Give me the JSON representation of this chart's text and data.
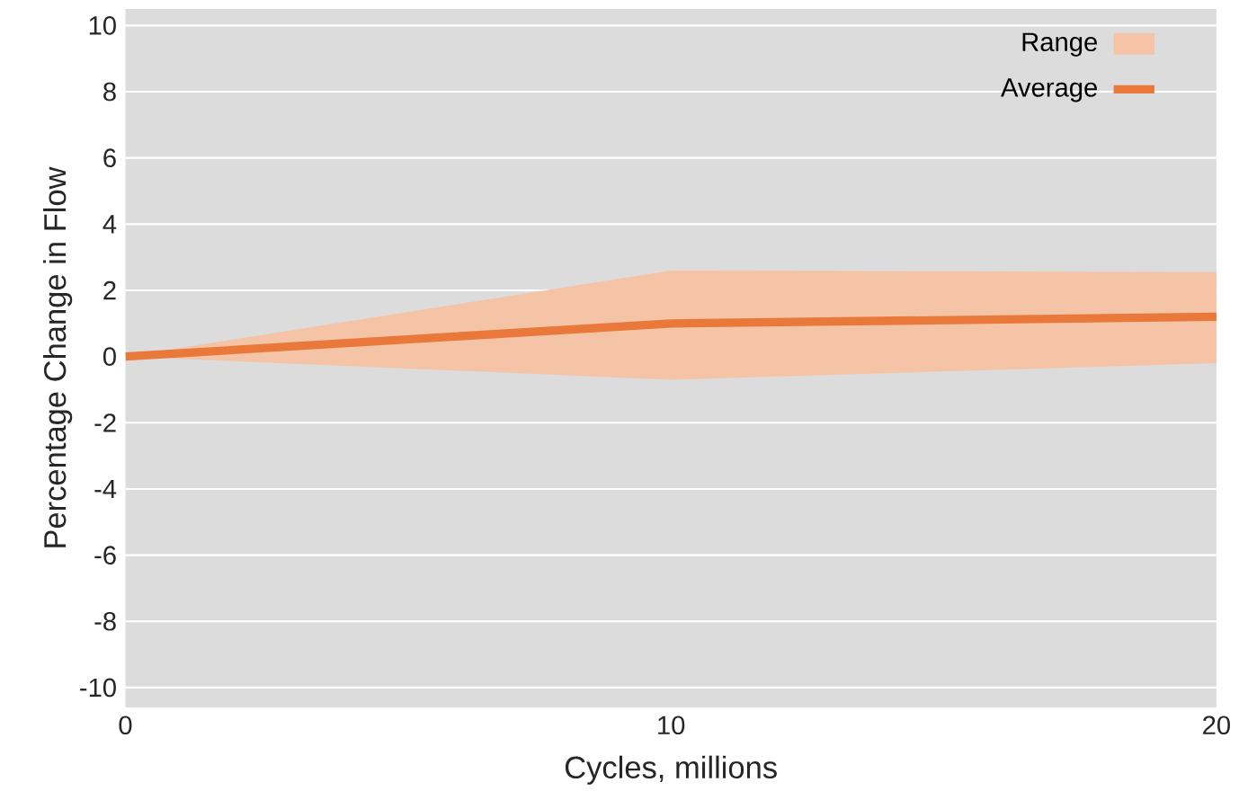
{
  "chart_data": {
    "type": "line",
    "xlabel": "Cycles, millions",
    "ylabel": "Percentage Change in Flow",
    "annotations": [
      "Range"
    ],
    "x": [
      0,
      10,
      20
    ],
    "series": [
      {
        "name": "Average",
        "color": "#e8793a",
        "values": [
          0,
          1.0,
          1.2
        ],
        "lower": [
          0,
          -0.7,
          -0.2
        ],
        "upper": [
          0,
          2.6,
          2.55
        ]
      }
    ],
    "xlim": [
      0,
      20
    ],
    "xticks": [
      0,
      10,
      20
    ],
    "ylim": [
      -10.6,
      10.5
    ],
    "yticks": [
      -10,
      -8,
      -6,
      -4,
      -2,
      0,
      2,
      4,
      6,
      8,
      10
    ],
    "grid": "y",
    "legend": "top right",
    "marker": "none",
    "line_style": "solid"
  }
}
